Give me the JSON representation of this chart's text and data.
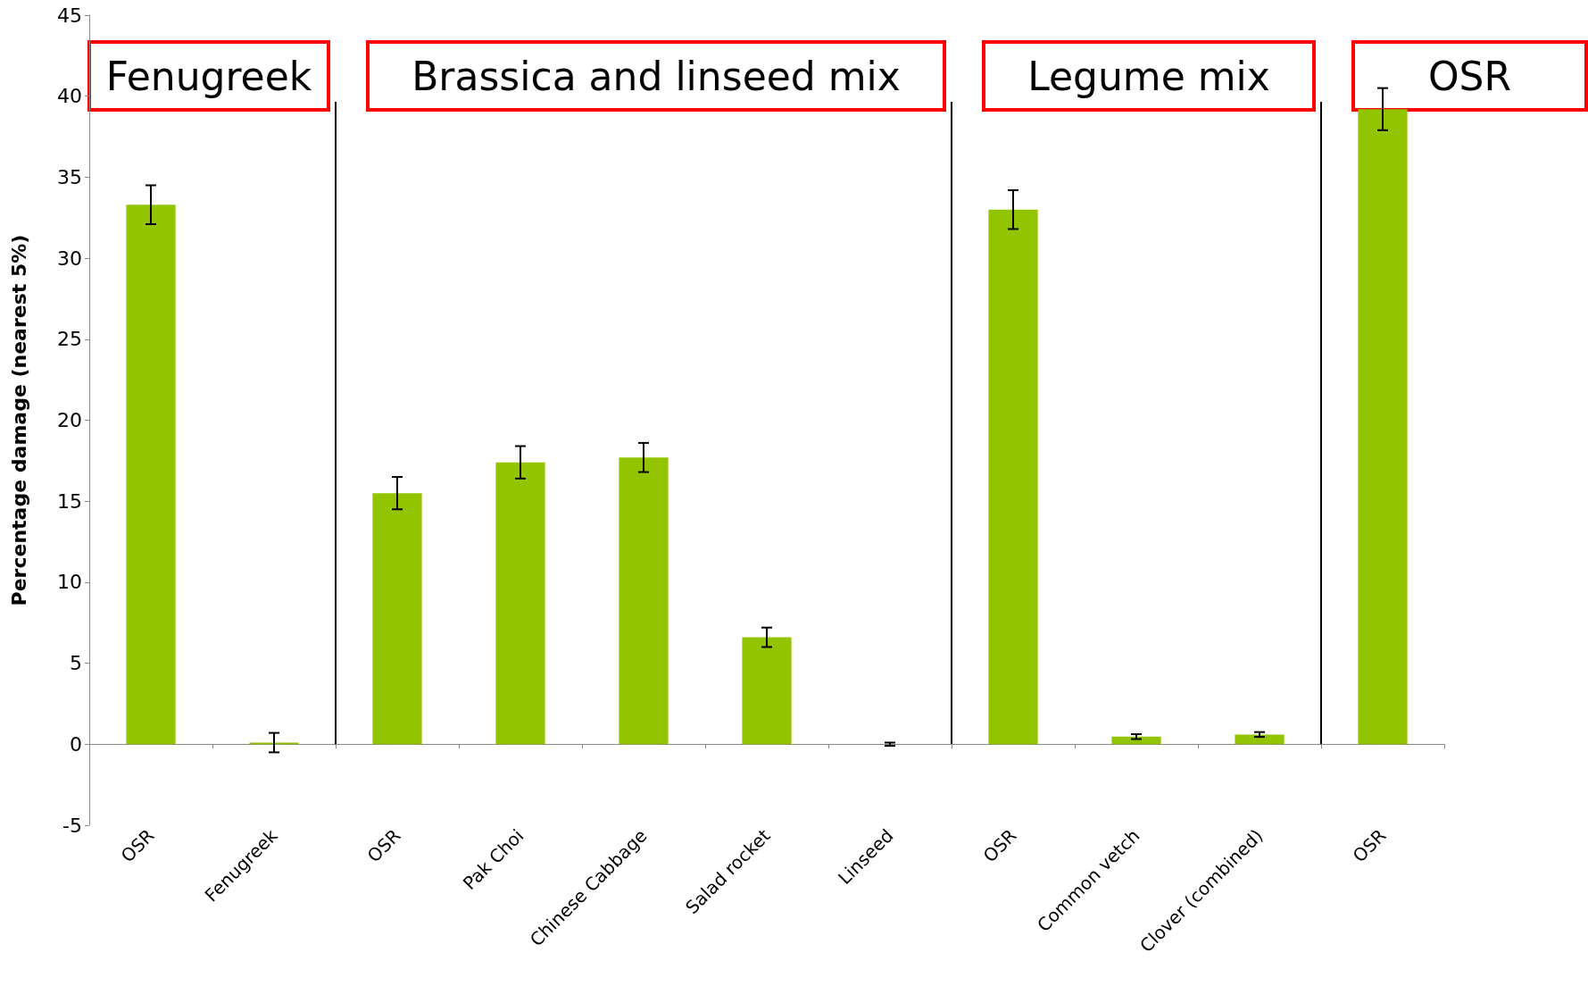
{
  "chart_data": {
    "type": "bar",
    "ylabel": "Percentage damage (nearest 5%)",
    "categories": [
      "OSR",
      "Fenugreek",
      "OSR",
      "Pak Choi",
      "Chinese Cabbage",
      "Salad rocket",
      "Linseed",
      "OSR",
      "Common vetch",
      "Clover (combined)",
      "OSR"
    ],
    "values": [
      33.3,
      0.1,
      15.5,
      17.4,
      17.7,
      6.6,
      0,
      33.0,
      0.47,
      0.6,
      39.2
    ],
    "errors": [
      1.2,
      0.6,
      1.0,
      1.0,
      0.9,
      0.6,
      0.1,
      1.2,
      0.15,
      0.15,
      1.3
    ],
    "color": "#92c500",
    "ylim": [
      -5,
      45
    ],
    "yticks": [
      -5,
      0,
      5,
      10,
      15,
      20,
      25,
      30,
      35,
      40,
      45
    ],
    "grid": false,
    "annotations": [
      "Fenugreek",
      "Brassica and linseed mix",
      "Legume mix",
      "OSR"
    ]
  }
}
